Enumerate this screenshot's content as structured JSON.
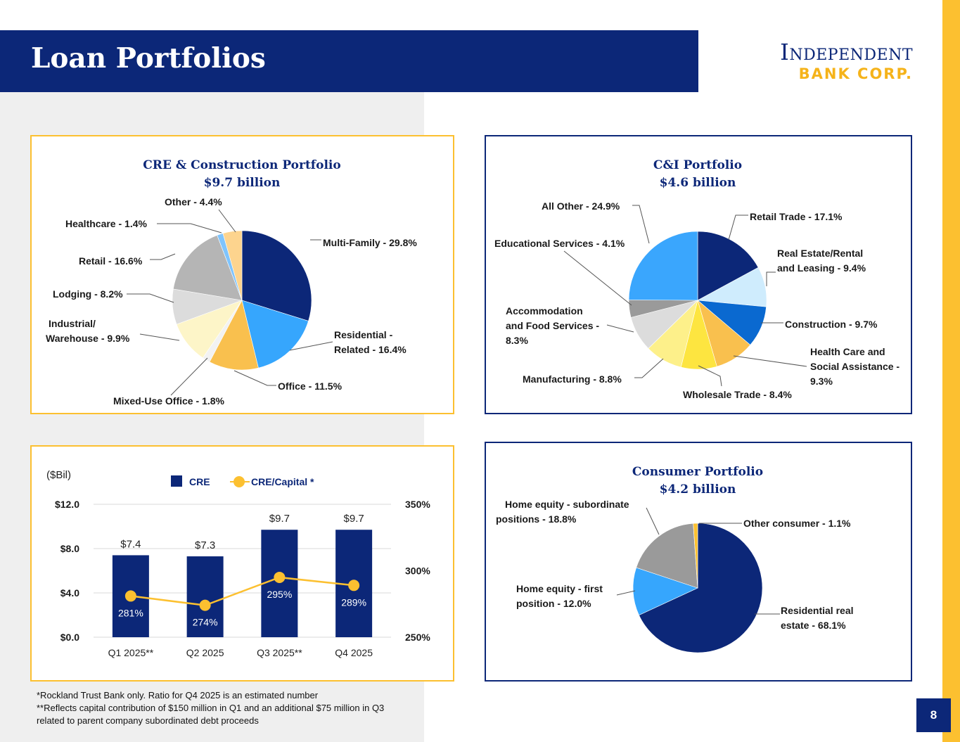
{
  "page": {
    "title": "Loan Portfolios",
    "page_number": "8",
    "logo": {
      "line1": "Independent",
      "line2": "BANK CORP."
    },
    "footnotes": [
      "*Rockland Trust Bank only.  Ratio for Q4 2025 is an estimated number",
      "**Reflects capital contribution of $150 million in Q1 and an additional $75 million in Q3",
      "related to parent company subordinated debt proceeds"
    ]
  },
  "colors": {
    "navy": "#0c2778",
    "gold": "#fcc030",
    "gray_bg": "#efefef"
  },
  "chart_data": [
    {
      "type": "pie",
      "title": "CRE & Construction Portfolio",
      "subtitle": "$9.7 billion",
      "slices": [
        {
          "name": "Multi-Family",
          "value": 29.8,
          "label": "Multi-Family - 29.8%",
          "color": "#0c2778"
        },
        {
          "name": "Residential - Related",
          "value": 16.4,
          "label": "Residential - Related - 16.4%",
          "color": "#36a6fd"
        },
        {
          "name": "Office",
          "value": 11.5,
          "label": "Office - 11.5%",
          "color": "#f9c04e"
        },
        {
          "name": "Mixed-Use Office",
          "value": 1.8,
          "label": "Mixed-Use Office - 1.8%",
          "color": "#f2f2f2"
        },
        {
          "name": "Industrial/ Warehouse",
          "value": 9.9,
          "label": "Industrial/ Warehouse - 9.9%",
          "color": "#fdf5c8"
        },
        {
          "name": "Lodging",
          "value": 8.2,
          "label": "Lodging - 8.2%",
          "color": "#dcdcdc"
        },
        {
          "name": "Retail",
          "value": 16.6,
          "label": "Retail - 16.6%",
          "color": "#b5b5b5"
        },
        {
          "name": "Healthcare",
          "value": 1.4,
          "label": "Healthcare - 1.4%",
          "color": "#7fc4fd"
        },
        {
          "name": "Other",
          "value": 4.4,
          "label": "Other - 4.4%",
          "color": "#fdd48e"
        }
      ]
    },
    {
      "type": "pie",
      "title": "C&I Portfolio",
      "subtitle": "$4.6 billion",
      "slices": [
        {
          "name": "Retail Trade",
          "value": 17.1,
          "label": "Retail Trade - 17.1%",
          "color": "#0c2778"
        },
        {
          "name": "Real Estate/Rental and Leasing",
          "value": 9.4,
          "label": "Real Estate/Rental and Leasing - 9.4%",
          "color": "#cfecfd"
        },
        {
          "name": "Construction",
          "value": 9.7,
          "label": "Construction - 9.7%",
          "color": "#0a69d0"
        },
        {
          "name": "Health Care and Social Assistance",
          "value": 9.3,
          "label": "Health Care and Social Assistance - 9.3%",
          "color": "#f9c04e"
        },
        {
          "name": "Wholesale Trade",
          "value": 8.4,
          "label": "Wholesale Trade - 8.4%",
          "color": "#fde540"
        },
        {
          "name": "Manufacturing",
          "value": 8.8,
          "label": "Manufacturing - 8.8%",
          "color": "#fdf08a"
        },
        {
          "name": "Accommodation and Food Services",
          "value": 8.3,
          "label": "Accommodation and Food Services - 8.3%",
          "color": "#dcdcdc"
        },
        {
          "name": "Educational Services",
          "value": 4.1,
          "label": "Educational Services - 4.1%",
          "color": "#9a9a9a"
        },
        {
          "name": "All Other",
          "value": 24.9,
          "label": "All Other  - 24.9%",
          "color": "#3aa6fd"
        }
      ]
    },
    {
      "type": "bar",
      "ylabel": "($Bil)",
      "categories": [
        "Q1 2025**",
        "Q2 2025",
        "Q3 2025**",
        "Q4 2025"
      ],
      "ylim": [
        0,
        12
      ],
      "yticks": [
        "$0.0",
        "$4.0",
        "$8.0",
        "$12.0"
      ],
      "y2lim": [
        250,
        350
      ],
      "y2ticks": [
        "250%",
        "300%",
        "350%"
      ],
      "legend": [
        "CRE",
        "CRE/Capital *"
      ],
      "series": [
        {
          "name": "CRE",
          "type": "bar",
          "values": [
            7.4,
            7.3,
            9.7,
            9.7
          ],
          "labels": [
            "$7.4",
            "$7.3",
            "$9.7",
            "$9.7"
          ],
          "color": "#0c2778"
        },
        {
          "name": "CRE/Capital *",
          "type": "line",
          "axis": "right",
          "values": [
            281,
            274,
            295,
            289
          ],
          "labels": [
            "281%",
            "274%",
            "295%",
            "289%"
          ],
          "color": "#fcc030"
        }
      ]
    },
    {
      "type": "pie",
      "title": "Consumer Portfolio",
      "subtitle": "$4.2 billion",
      "slices": [
        {
          "name": "Residential real estate",
          "value": 68.1,
          "label": "Residential real estate - 68.1%",
          "color": "#0c2778"
        },
        {
          "name": "Home equity - first position",
          "value": 12.0,
          "label": "Home equity - first position - 12.0%",
          "color": "#36a6fd"
        },
        {
          "name": "Home equity - subordinate positions",
          "value": 18.8,
          "label": "Home equity - subordinate positions - 18.8%",
          "color": "#9a9a9a"
        },
        {
          "name": "Other consumer",
          "value": 1.1,
          "label": "Other consumer - 1.1%",
          "color": "#fcc030"
        }
      ]
    }
  ]
}
